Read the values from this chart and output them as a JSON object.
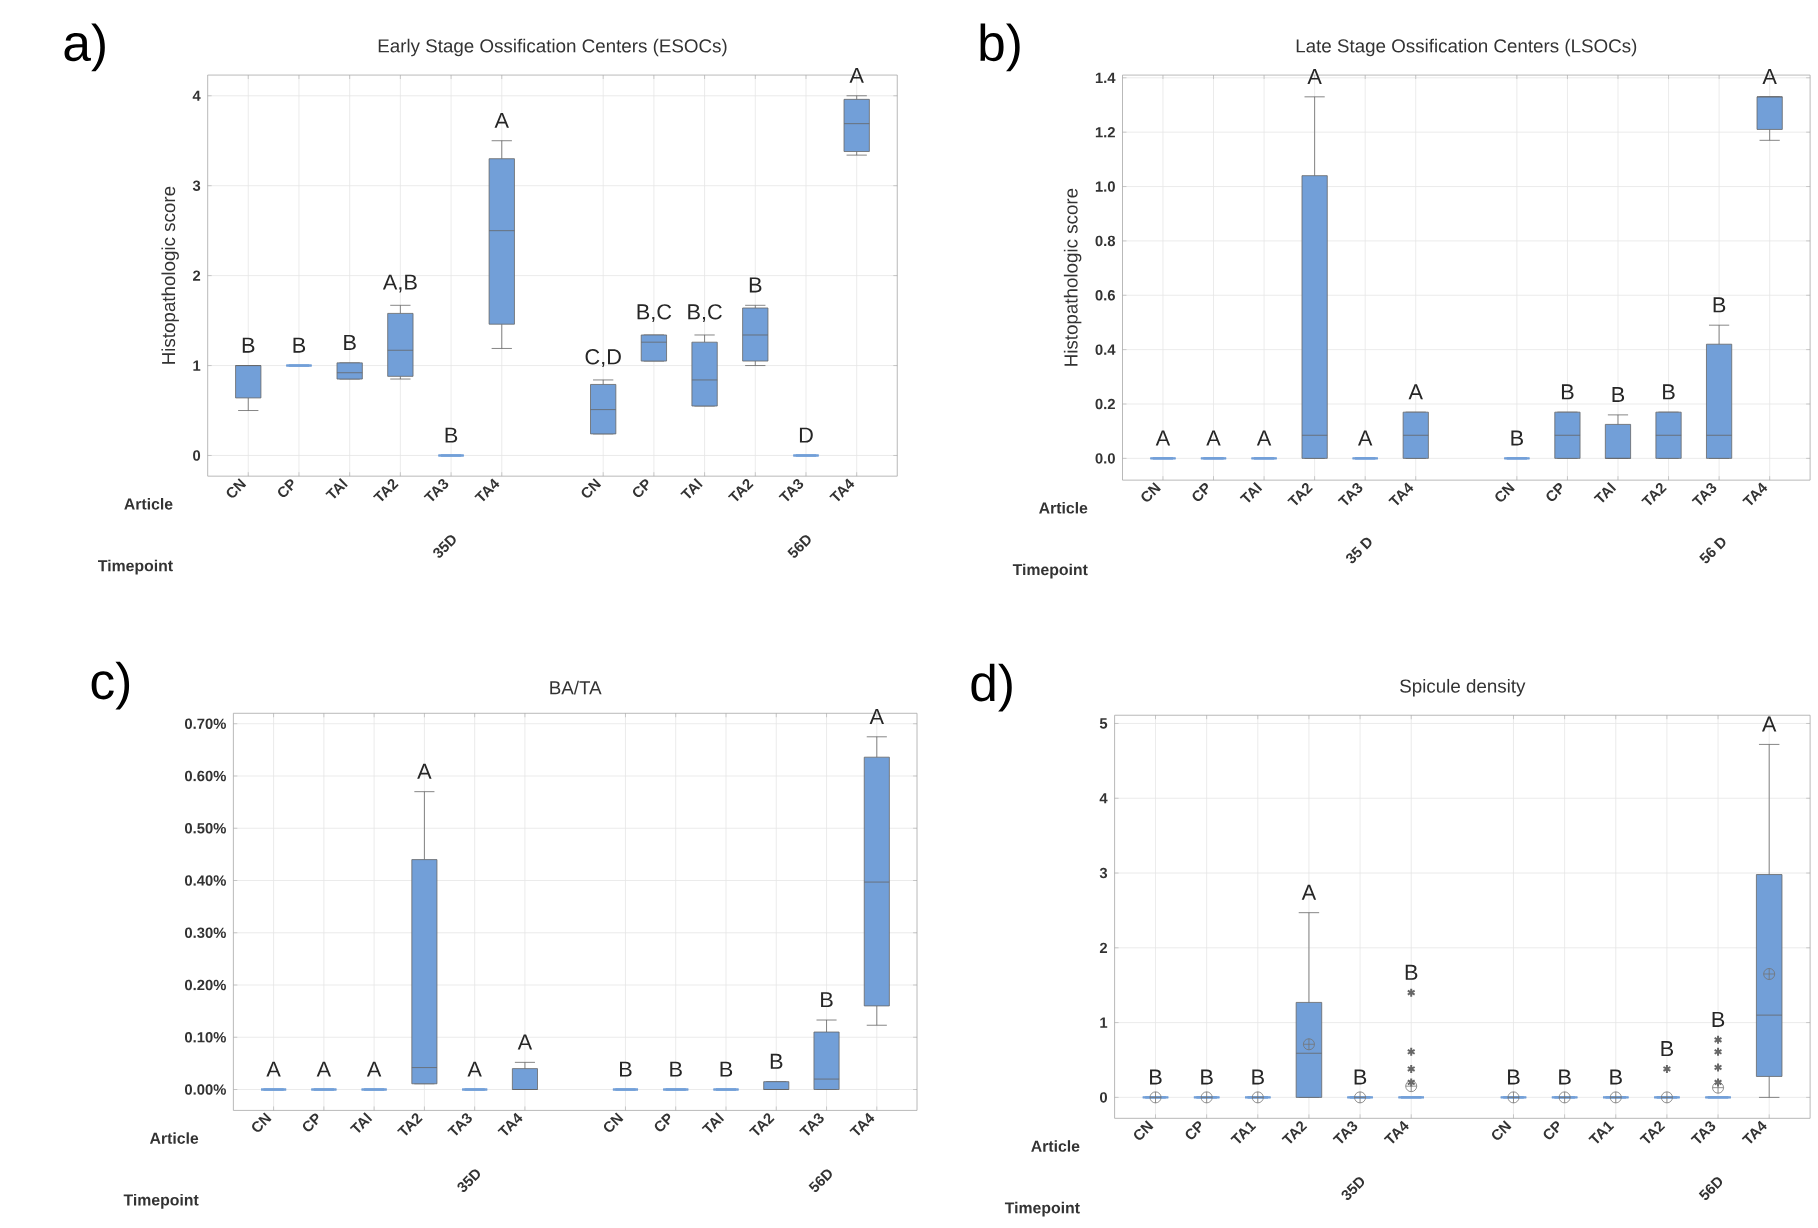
{
  "chart_data": [
    {
      "type": "box",
      "title": "Early Stage Ossification Centers (ESOCs)",
      "ylabel": "Histopathologic score",
      "xlabel": "Article",
      "color": "#729fd8",
      "grid": true,
      "categories": [
        "CN",
        "CP",
        "TAl",
        "TA2",
        "TA3",
        "TA4",
        null,
        "CN",
        "CP",
        "TAl",
        "TA2",
        "TA3",
        "TA4"
      ],
      "boxes": [
        {
          "low": 0.5,
          "q1": 0.64,
          "median": 1.0,
          "q3": 1.0,
          "high": 1.0
        },
        {
          "low": 1,
          "q1": 1,
          "median": 1,
          "q3": 1,
          "high": 1
        },
        {
          "low": 0.85,
          "q1": 0.85,
          "median": 0.92,
          "q3": 1.03,
          "high": 1.03
        },
        {
          "low": 0.85,
          "q1": 0.88,
          "median": 1.17,
          "q3": 1.58,
          "high": 1.67
        },
        {
          "low": 0,
          "q1": 0,
          "median": 0,
          "q3": 0,
          "high": 0
        },
        {
          "low": 1.19,
          "q1": 1.46,
          "median": 2.5,
          "q3": 3.3,
          "high": 3.5
        },
        null,
        {
          "low": 0.24,
          "q1": 0.24,
          "median": 0.51,
          "q3": 0.79,
          "high": 0.84
        },
        {
          "low": 1.05,
          "q1": 1.05,
          "median": 1.26,
          "q3": 1.34,
          "high": 1.34
        },
        {
          "low": 0.55,
          "q1": 0.55,
          "median": 0.84,
          "q3": 1.26,
          "high": 1.34
        },
        {
          "low": 1.0,
          "q1": 1.05,
          "median": 1.34,
          "q3": 1.64,
          "high": 1.67
        },
        {
          "low": 0,
          "q1": 0,
          "median": 0,
          "q3": 0,
          "high": 0
        },
        {
          "low": 3.34,
          "q1": 3.38,
          "median": 3.69,
          "q3": 3.96,
          "high": 4.0
        }
      ],
      "ylim": [
        -0.23,
        4.23
      ],
      "yticks": [
        0,
        1,
        2,
        3,
        4
      ],
      "annotations": [
        "a)",
        "Timepoint",
        "35D",
        "56D",
        "B",
        "B",
        "B",
        "A,B",
        "B",
        "A",
        "C,D",
        "B,C",
        "B,C",
        "B",
        "D",
        "A"
      ]
    },
    {
      "type": "box",
      "title": "Late Stage Ossification Centers (LSOCs)",
      "ylabel": "Histopathologic score",
      "xlabel": "Article",
      "color": "#729fd8",
      "grid": true,
      "categories": [
        "CN",
        "CP",
        "TAl",
        "TA2",
        "TA3",
        "TA4",
        null,
        "CN",
        "CP",
        "TAl",
        "TA2",
        "TA3",
        "TA4"
      ],
      "boxes": [
        {
          "low": 0,
          "q1": 0,
          "median": 0,
          "q3": 0,
          "high": 0
        },
        {
          "low": 0,
          "q1": 0,
          "median": 0,
          "q3": 0,
          "high": 0
        },
        {
          "low": 0,
          "q1": 0,
          "median": 0,
          "q3": 0,
          "high": 0
        },
        {
          "low": 0,
          "q1": 0,
          "median": 0.085,
          "q3": 1.04,
          "high": 1.33
        },
        {
          "low": 0,
          "q1": 0,
          "median": 0,
          "q3": 0,
          "high": 0
        },
        {
          "low": 0,
          "q1": 0,
          "median": 0.085,
          "q3": 0.17,
          "high": 0.17
        },
        null,
        {
          "low": 0,
          "q1": 0,
          "median": 0,
          "q3": 0,
          "high": 0
        },
        {
          "low": 0,
          "q1": 0,
          "median": 0.085,
          "q3": 0.17,
          "high": 0.17
        },
        {
          "low": 0,
          "q1": 0,
          "median": 0,
          "q3": 0.125,
          "high": 0.16
        },
        {
          "low": 0,
          "q1": 0,
          "median": 0.085,
          "q3": 0.17,
          "high": 0.17
        },
        {
          "low": 0,
          "q1": 0,
          "median": 0.085,
          "q3": 0.42,
          "high": 0.49
        },
        {
          "low": 1.17,
          "q1": 1.21,
          "median": 1.33,
          "q3": 1.33,
          "high": 1.33
        }
      ],
      "ylim": [
        -0.08,
        1.41
      ],
      "yticks": [
        {
          "value": 0,
          "label": "0.0"
        },
        {
          "value": 0.2,
          "label": "0.2"
        },
        {
          "value": 0.4,
          "label": "0.4"
        },
        {
          "value": 0.6,
          "label": "0.6"
        },
        {
          "value": 0.8,
          "label": "0.8"
        },
        {
          "value": 1.0,
          "label": "1.0"
        },
        {
          "value": 1.2,
          "label": "1.2"
        },
        {
          "value": 1.4,
          "label": "1.4"
        }
      ],
      "annotations": [
        "b)",
        "Timepoint",
        "35 D",
        "56 D",
        "A",
        "A",
        "A",
        "A",
        "A",
        "A",
        "B",
        "B",
        "B",
        "B",
        "B",
        "A"
      ]
    },
    {
      "type": "box",
      "title": "BA/TA",
      "xlabel": "Article",
      "color": "#729fd8",
      "grid": true,
      "categories": [
        "CN",
        "CP",
        "TAl",
        "TA2",
        "TA3",
        "TA4",
        null,
        "CN",
        "CP",
        "TAl",
        "TA2",
        "TA3",
        "TA4"
      ],
      "boxes": [
        {
          "low": 0,
          "q1": 0,
          "median": 0,
          "q3": 0,
          "high": 0
        },
        {
          "low": 0,
          "q1": 0,
          "median": 0,
          "q3": 0,
          "high": 0
        },
        {
          "low": 0,
          "q1": 0,
          "median": 0,
          "q3": 0,
          "high": 0
        },
        {
          "low": 0.011,
          "q1": 0.011,
          "median": 0.042,
          "q3": 0.44,
          "high": 0.57
        },
        {
          "low": 0,
          "q1": 0,
          "median": 0,
          "q3": 0,
          "high": 0
        },
        {
          "low": 0,
          "q1": 0,
          "median": 0,
          "q3": 0.04,
          "high": 0.052
        },
        null,
        {
          "low": 0,
          "q1": 0,
          "median": 0,
          "q3": 0,
          "high": 0
        },
        {
          "low": 0,
          "q1": 0,
          "median": 0,
          "q3": 0,
          "high": 0
        },
        {
          "low": 0,
          "q1": 0,
          "median": 0,
          "q3": 0,
          "high": 0
        },
        {
          "low": 0,
          "q1": 0,
          "median": 0,
          "q3": 0.015,
          "high": 0.015
        },
        {
          "low": 0,
          "q1": 0,
          "median": 0.02,
          "q3": 0.11,
          "high": 0.133
        },
        {
          "low": 0.123,
          "q1": 0.16,
          "median": 0.397,
          "q3": 0.636,
          "high": 0.675
        }
      ],
      "ylim": [
        -0.04,
        0.72
      ],
      "yticks": [
        {
          "value": 0,
          "label": "0.00%"
        },
        {
          "value": 0.1,
          "label": "0.10%"
        },
        {
          "value": 0.2,
          "label": "0.20%"
        },
        {
          "value": 0.3,
          "label": "0.30%"
        },
        {
          "value": 0.4,
          "label": "0.40%"
        },
        {
          "value": 0.5,
          "label": "0.50%"
        },
        {
          "value": 0.6,
          "label": "0.60%"
        },
        {
          "value": 0.7,
          "label": "0.70%"
        }
      ],
      "annotations": [
        "c)",
        "Timepoint",
        "35D",
        "56D",
        "A",
        "A",
        "A",
        "A",
        "A",
        "A",
        "B",
        "B",
        "B",
        "B",
        "B",
        "A"
      ]
    },
    {
      "type": "box",
      "title": "Spicule density",
      "xlabel": "Article",
      "color": "#729fd8",
      "grid": true,
      "categories": [
        "CN",
        "CP",
        "TA1",
        "TA2",
        "TA3",
        "TA4",
        null,
        "CN",
        "CP",
        "TA1",
        "TA2",
        "TA3",
        "TA4"
      ],
      "boxes": [
        {
          "low": 0,
          "q1": 0,
          "median": 0,
          "q3": 0,
          "high": 0,
          "mean": 0
        },
        {
          "low": 0,
          "q1": 0,
          "median": 0,
          "q3": 0,
          "high": 0,
          "mean": 0
        },
        {
          "low": 0,
          "q1": 0,
          "median": 0,
          "q3": 0,
          "high": 0,
          "mean": 0
        },
        {
          "low": 0,
          "q1": 0,
          "median": 0.59,
          "q3": 1.27,
          "high": 2.47,
          "mean": 0.71
        },
        {
          "low": 0,
          "q1": 0,
          "median": 0,
          "q3": 0,
          "high": 0,
          "mean": 0
        },
        {
          "low": 0,
          "q1": 0,
          "median": 0,
          "q3": 0,
          "high": 0,
          "mean": 0.15,
          "outliers": [
            1.4,
            0.61,
            0.38,
            0.2
          ]
        },
        null,
        {
          "low": 0,
          "q1": 0,
          "median": 0,
          "q3": 0,
          "high": 0,
          "mean": 0
        },
        {
          "low": 0,
          "q1": 0,
          "median": 0,
          "q3": 0,
          "high": 0,
          "mean": 0
        },
        {
          "low": 0,
          "q1": 0,
          "median": 0,
          "q3": 0,
          "high": 0,
          "mean": 0
        },
        {
          "low": 0,
          "q1": 0,
          "median": 0,
          "q3": 0,
          "high": 0,
          "mean": 0,
          "outliers": [
            0.38
          ]
        },
        {
          "low": 0,
          "q1": 0,
          "median": 0,
          "q3": 0,
          "high": 0,
          "mean": 0.13,
          "outliers": [
            0.77,
            0.61,
            0.4,
            0.2
          ]
        },
        {
          "low": 0,
          "q1": 0.28,
          "median": 1.1,
          "q3": 2.98,
          "high": 4.72,
          "mean": 1.65
        }
      ],
      "ylim": [
        -0.28,
        5.11
      ],
      "yticks": [
        0,
        1,
        2,
        3,
        4,
        5
      ],
      "annotations": [
        "d)",
        "Timepoint",
        "35D",
        "56D",
        "B",
        "B",
        "B",
        "A",
        "B",
        "B",
        "B",
        "B",
        "B",
        "B",
        "B",
        "A"
      ]
    }
  ]
}
